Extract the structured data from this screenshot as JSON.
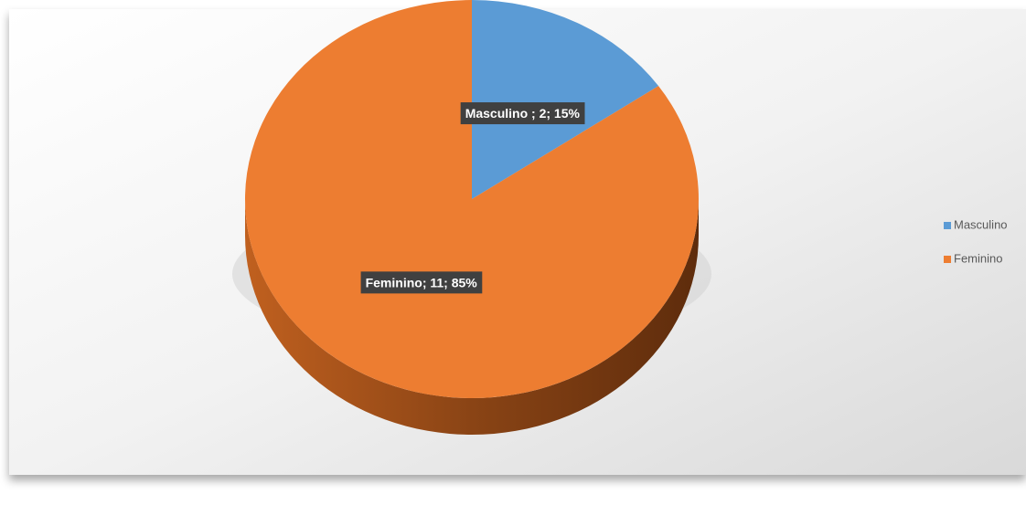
{
  "chart_data": {
    "type": "pie",
    "categories": [
      "Masculino",
      "Feminino"
    ],
    "values": [
      2,
      11
    ],
    "value_labels": [
      "Masculino ; 2; 15%",
      "Feminino; 11; 85%"
    ],
    "colors": [
      "#5b9bd5",
      "#ed7d31"
    ],
    "legend": "right"
  }
}
